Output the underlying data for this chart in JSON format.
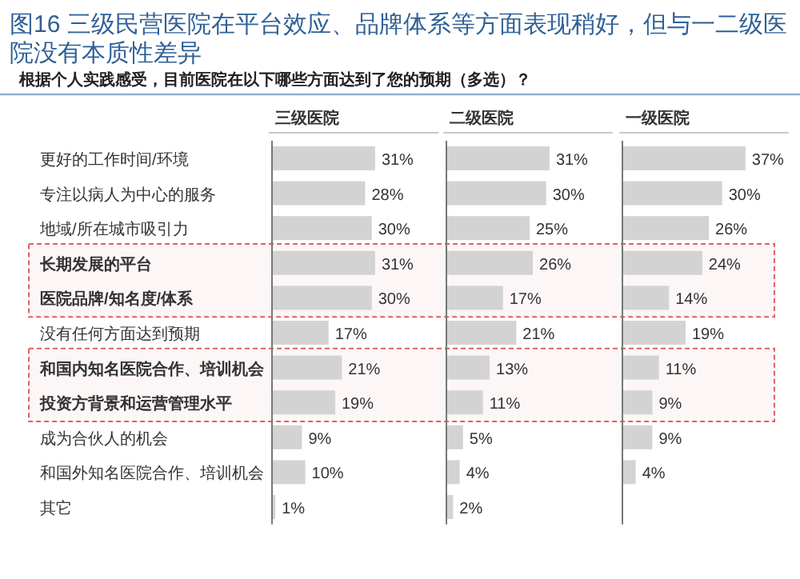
{
  "chart_data": [
    {
      "type": "bar",
      "orientation": "horizontal",
      "title": "图16 三级民营医院在平台效应、品牌体系等方面表现稍好，但与一二级医院没有本质性差异",
      "subtitle": "根据个人实践感受，目前医院在以下哪些方面达到了您的预期（多选）？",
      "categories": [
        "更好的工作时间/环境",
        "专注以病人为中心的服务",
        "地域/所在城市吸引力",
        "长期发展的平台",
        "医院品牌/知名度/体系",
        "没有任何方面达到预期",
        "和国内知名医院合作、培训机会",
        "投资方背景和运营管理水平",
        "成为合伙人的机会",
        "和国外知名医院合作、培训机会",
        "其它"
      ],
      "tick_labels": "y",
      "series": [
        {
          "name": "三级医院",
          "color": "#d3d3d3",
          "values": [
            31,
            28,
            30,
            31,
            30,
            17,
            21,
            19,
            9,
            10,
            1
          ],
          "value_labels": [
            "31%",
            "28%",
            "30%",
            "31%",
            "30%",
            "17%",
            "21%",
            "19%",
            "9%",
            "10%",
            "1%"
          ]
        }
      ],
      "bands": [
        {
          "axis": "y",
          "from": "长期发展的平台",
          "to": "医院品牌/知名度/体系",
          "color": "#e06060"
        },
        {
          "axis": "y",
          "from": "和国内知名医院合作、培训机会",
          "to": "投资方背景和运营管理水平",
          "color": "#e06060"
        }
      ]
    },
    {
      "type": "bar",
      "orientation": "horizontal",
      "categories": [
        null,
        null,
        null,
        null,
        null,
        null,
        null,
        null,
        null,
        null,
        null
      ],
      "series": [
        {
          "name": "二级医院",
          "color": "#d3d3d3",
          "values": [
            31,
            30,
            25,
            26,
            17,
            21,
            13,
            11,
            5,
            4,
            2
          ],
          "value_labels": [
            "31%",
            "30%",
            "25%",
            "26%",
            "17%",
            "21%",
            "13%",
            "11%",
            "5%",
            "4%",
            "2%"
          ]
        }
      ]
    },
    {
      "type": "bar",
      "orientation": "horizontal",
      "categories": [
        null,
        null,
        null,
        null,
        null,
        null,
        null,
        null,
        null,
        null,
        null
      ],
      "series": [
        {
          "name": "一级医院",
          "color": "#d3d3d3",
          "values": [
            37,
            30,
            26,
            24,
            14,
            19,
            11,
            9,
            9,
            4,
            null
          ],
          "value_labels": [
            "37%",
            "30%",
            "26%",
            "24%",
            "14%",
            "19%",
            "11%",
            "9%",
            "9%",
            "4%",
            null
          ]
        }
      ]
    }
  ]
}
